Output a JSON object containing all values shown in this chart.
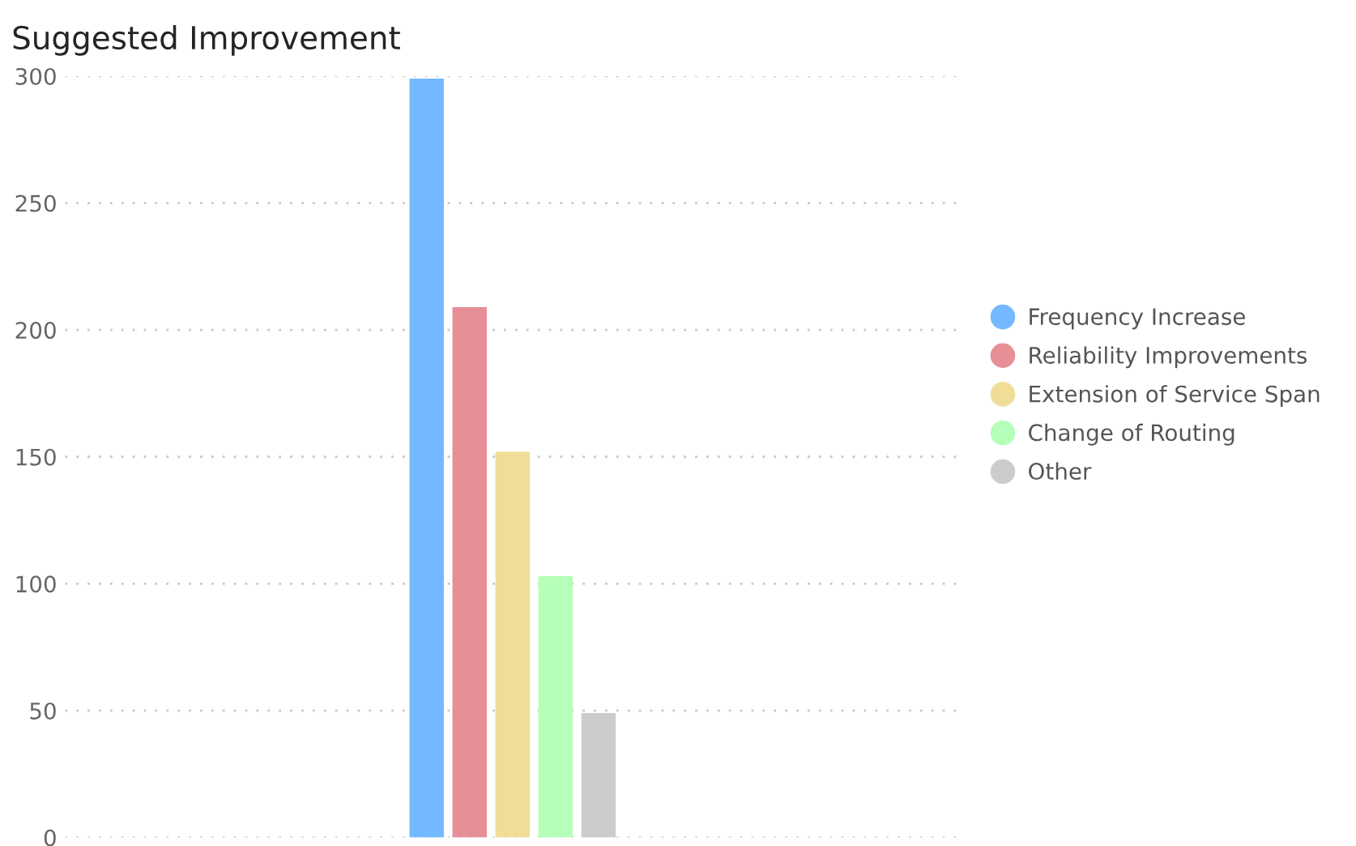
{
  "chart_data": {
    "type": "bar",
    "title": "Suggested Improvement",
    "categories": [
      null
    ],
    "series": [
      {
        "name": "Frequency Increase",
        "color": "#73b9ff",
        "values": [
          299
        ]
      },
      {
        "name": "Reliability Improvements",
        "color": "#e68f96",
        "values": [
          209
        ]
      },
      {
        "name": "Extension of Service Span",
        "color": "#f0de98",
        "values": [
          152
        ]
      },
      {
        "name": "Change of Routing",
        "color": "#b5ffb8",
        "values": [
          103
        ]
      },
      {
        "name": "Other",
        "color": "#cccccc",
        "values": [
          49
        ]
      }
    ],
    "ylim": [
      0,
      300
    ],
    "yticks": [
      0,
      50,
      100,
      150,
      200,
      250,
      300
    ],
    "grid": "y",
    "legend": "right",
    "tick_labels": "y"
  }
}
